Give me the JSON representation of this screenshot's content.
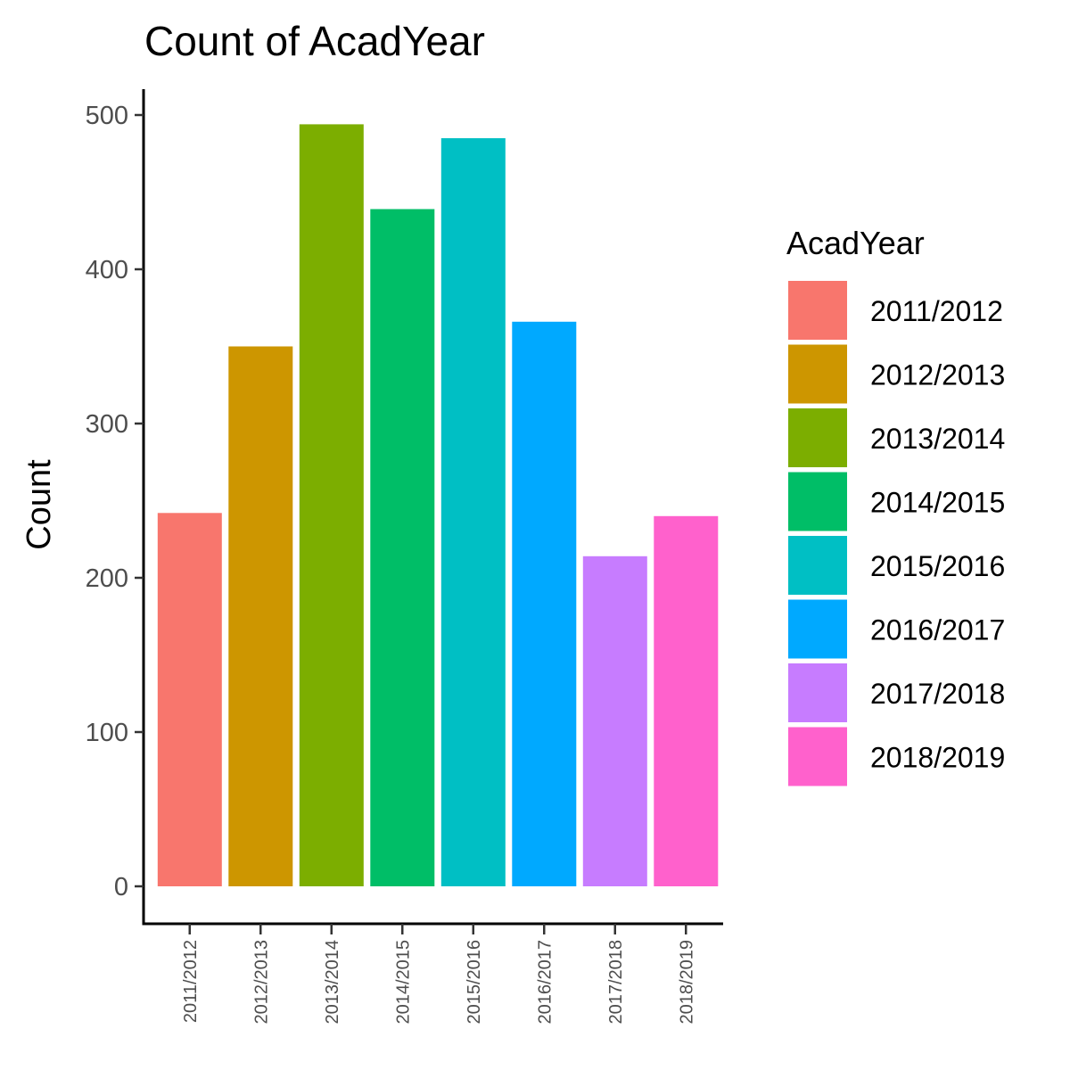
{
  "chart_data": {
    "type": "bar",
    "title": "Count of AcadYear",
    "xlabel": "",
    "ylabel": "Count",
    "ylim": [
      0,
      520
    ],
    "yticks": [
      0,
      100,
      200,
      300,
      400,
      500
    ],
    "categories": [
      "2011/2012",
      "2012/2013",
      "2013/2014",
      "2014/2015",
      "2015/2016",
      "2016/2017",
      "2017/2018",
      "2018/2019"
    ],
    "values": [
      242,
      350,
      494,
      439,
      485,
      366,
      214,
      240
    ],
    "colors": [
      "#F8766D",
      "#CD9600",
      "#7CAE00",
      "#00BE67",
      "#00BFC4",
      "#00A9FF",
      "#C77CFF",
      "#FF61CC"
    ],
    "grid": false,
    "legend": {
      "title": "AcadYear",
      "placement": "right",
      "entries": [
        "2011/2012",
        "2012/2013",
        "2013/2014",
        "2014/2015",
        "2015/2016",
        "2016/2017",
        "2017/2018",
        "2018/2019"
      ]
    }
  }
}
